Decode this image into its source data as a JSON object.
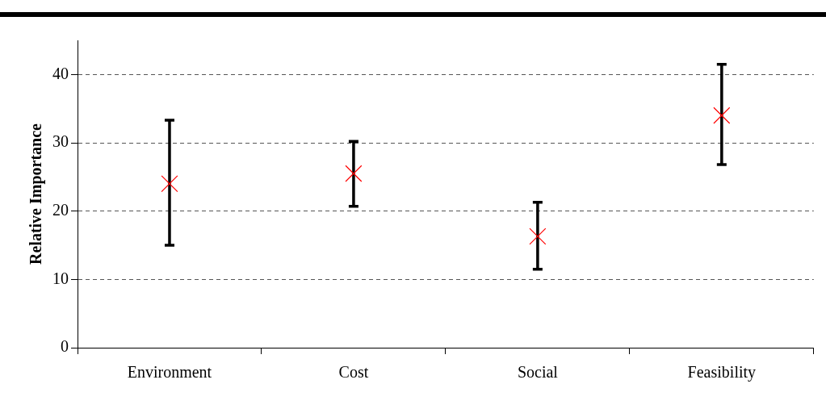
{
  "chart_data": {
    "type": "scatter",
    "ylabel": "Relative Importance",
    "categories": [
      "Environment",
      "Cost",
      "Social",
      "Feasibility"
    ],
    "series": [
      {
        "color": "#ff0000",
        "values": [
          24.0,
          25.5,
          16.3,
          34.0
        ],
        "errors": [
          [
            15.0,
            33.3
          ],
          [
            20.7,
            30.2
          ],
          [
            11.5,
            21.3
          ],
          [
            26.8,
            41.5
          ]
        ]
      }
    ],
    "ylim": [
      0,
      45
    ],
    "yticks": [
      0,
      10,
      20,
      30,
      40
    ],
    "grid": "y",
    "marker": "cross",
    "legend": false
  }
}
